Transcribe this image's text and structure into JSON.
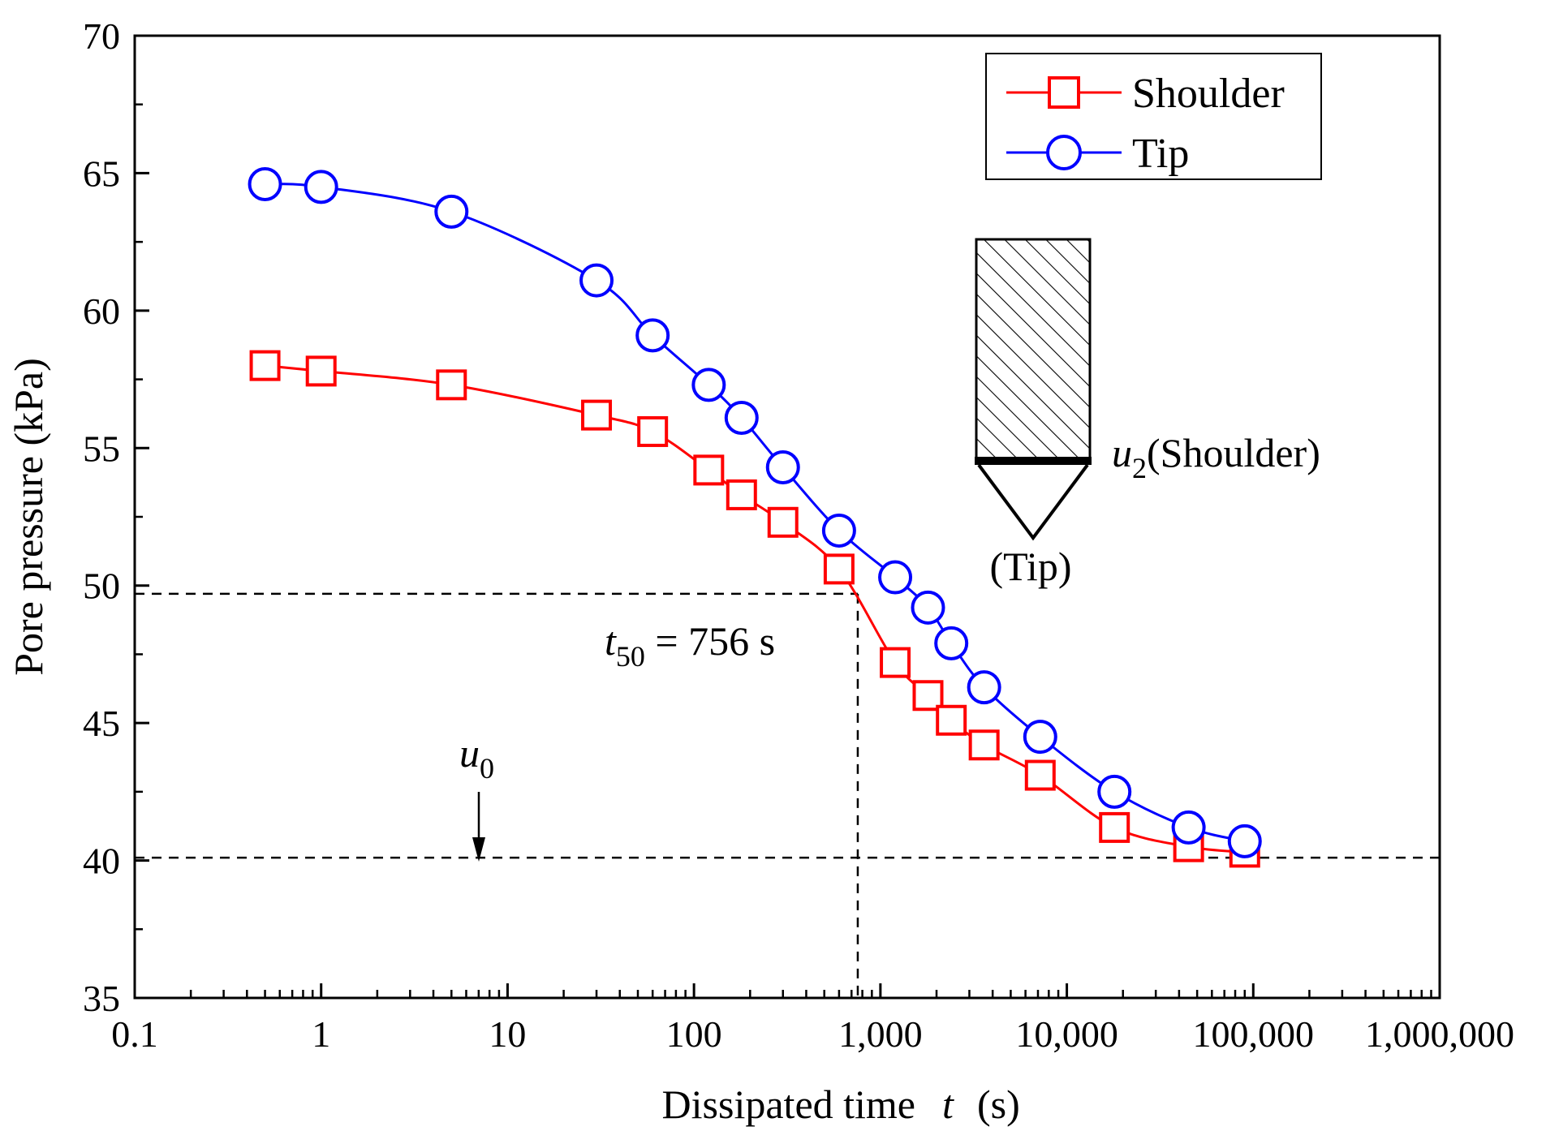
{
  "chart_data": {
    "type": "line",
    "xscale": "log",
    "xlabel": "Dissipated time",
    "xlabel_symbol": "t",
    "xlabel_unit": "(s)",
    "ylabel": "Pore pressure (kPa)",
    "xlim": [
      0.1,
      1000000
    ],
    "ylim": [
      35,
      70
    ],
    "x_ticks": [
      0.1,
      1,
      10,
      100,
      1000,
      10000,
      100000,
      1000000
    ],
    "x_tick_labels": [
      "0.1",
      "1",
      "10",
      "100",
      "1,000",
      "10,000",
      "100,000",
      "1,000,000"
    ],
    "y_ticks": [
      35,
      40,
      45,
      50,
      55,
      60,
      65,
      70
    ],
    "y_tick_labels": [
      "35",
      "40",
      "45",
      "50",
      "55",
      "60",
      "65",
      "70"
    ],
    "series": [
      {
        "name": "Shoulder",
        "color": "#ff0000",
        "marker": "square",
        "x": [
          0.5,
          1,
          5,
          30,
          60,
          120,
          180,
          300,
          600,
          1200,
          1800,
          2400,
          3600,
          7200,
          18000,
          45000,
          90000
        ],
        "y": [
          58.0,
          57.8,
          57.3,
          56.2,
          55.6,
          54.2,
          53.3,
          52.3,
          50.6,
          47.2,
          46.0,
          45.1,
          44.2,
          43.1,
          41.2,
          40.5,
          40.3
        ]
      },
      {
        "name": "Tip",
        "color": "#0000ff",
        "marker": "circle",
        "x": [
          0.5,
          1,
          5,
          30,
          60,
          120,
          180,
          300,
          600,
          1200,
          1800,
          2400,
          3600,
          7200,
          18000,
          45000,
          90000
        ],
        "y": [
          64.6,
          64.5,
          63.6,
          61.1,
          59.1,
          57.3,
          56.1,
          54.3,
          52.0,
          50.3,
          49.2,
          47.9,
          46.3,
          44.5,
          42.5,
          41.2,
          40.7
        ]
      }
    ],
    "reference_lines": {
      "u0_value": 40.1,
      "t50_value": 756,
      "t50_pressure": 49.7
    },
    "annotations": {
      "t50_symbol": "t",
      "t50_subscript": "50",
      "t50_text": " = 756 s",
      "u0_symbol": "u",
      "u0_subscript": "0",
      "u2_symbol": "u",
      "u2_subscript": "2",
      "u2_text": "(Shoulder)",
      "tip_text": "(Tip)"
    },
    "legend": {
      "position": "top-right",
      "entries": [
        "Shoulder",
        "Tip"
      ]
    }
  }
}
